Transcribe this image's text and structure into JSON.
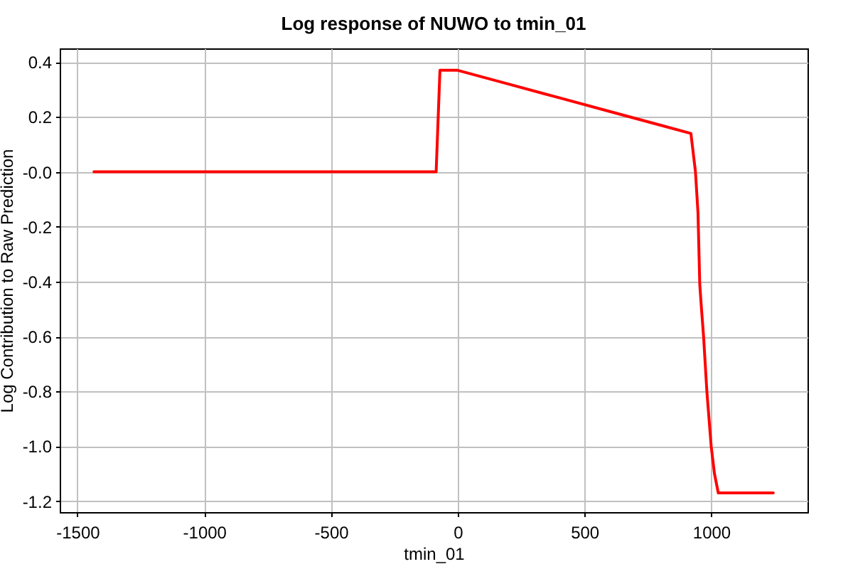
{
  "chart_data": {
    "type": "line",
    "title": "Log response of NUWO to tmin_01",
    "xlabel": "tmin_01",
    "ylabel": "Log Contribution to Raw Prediction",
    "series": [
      {
        "color": "#ff0000",
        "x": [
          -1435,
          -85,
          -70,
          0,
          200,
          400,
          600,
          800,
          920,
          938,
          948,
          955,
          961,
          970,
          983,
          1000,
          1013,
          1028,
          1245
        ],
        "values": [
          0,
          0,
          0.37,
          0.37,
          0.32,
          0.27,
          0.22,
          0.17,
          0.14,
          0,
          -0.15,
          -0.41,
          -0.49,
          -0.6,
          -0.8,
          -1.0,
          -1.1,
          -1.17,
          -1.17
        ]
      }
    ],
    "xlim": [
      -1570,
      1380
    ],
    "ylim": [
      -1.24,
      0.45
    ],
    "xticks": [
      -1500,
      -1000,
      -500,
      0,
      500,
      1000
    ],
    "yticks": [
      0.4,
      0.2,
      {
        "value": 0,
        "label": "-0.0"
      },
      -0.2,
      -0.4,
      -0.6,
      -0.8,
      {
        "value": -1,
        "label": "-1.0"
      },
      -1.2
    ],
    "grid": true,
    "marker": "none",
    "line_style": "solid"
  }
}
